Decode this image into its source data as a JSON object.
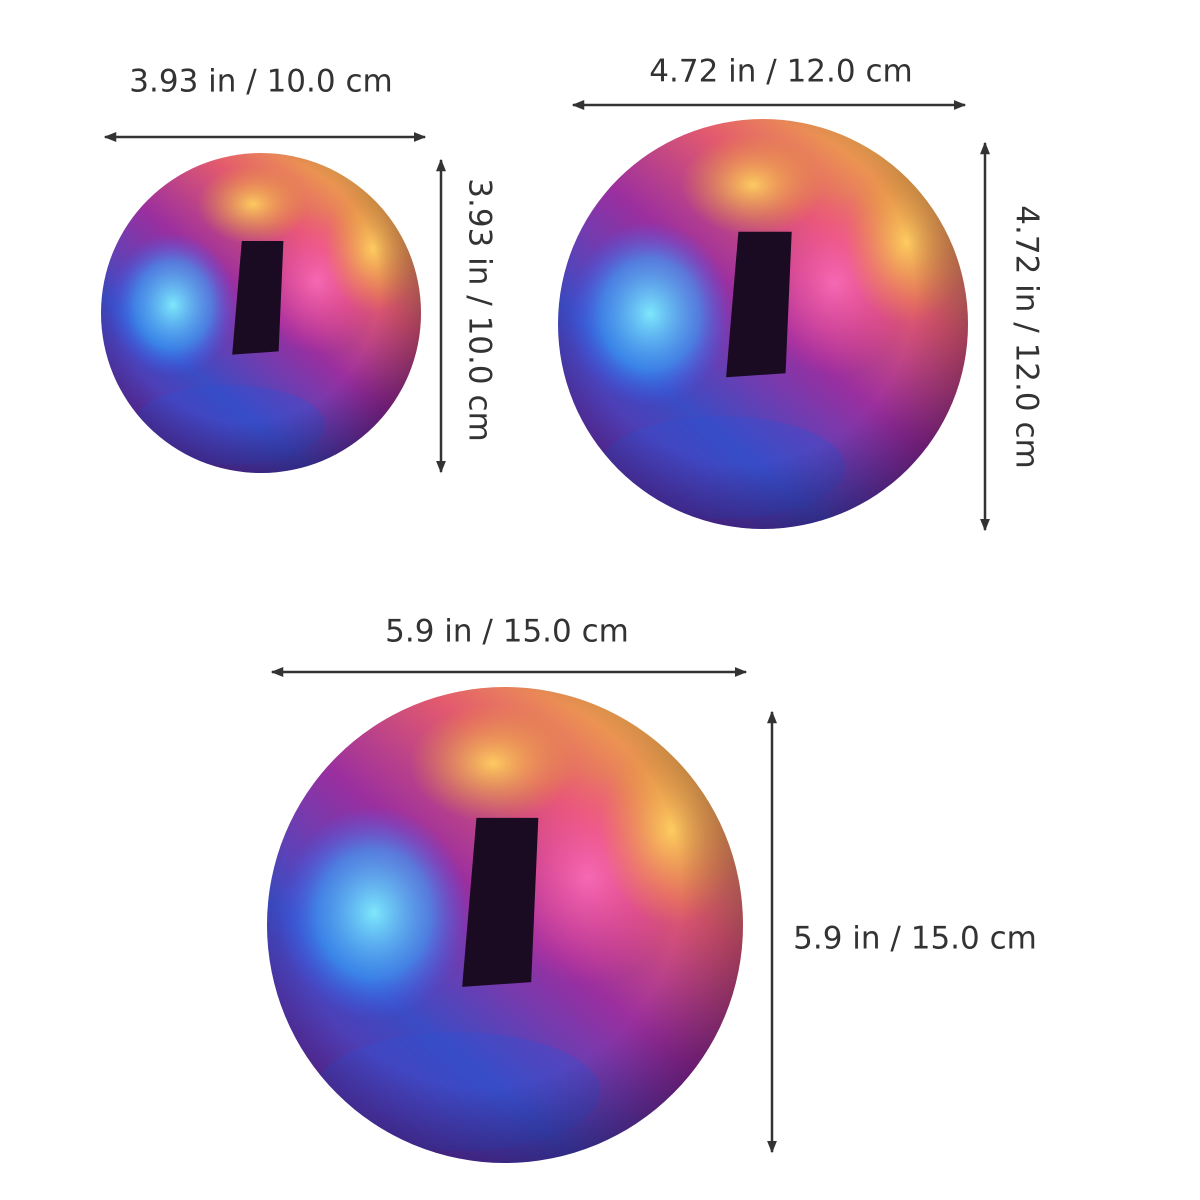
{
  "balls": [
    {
      "width_label": "3.93 in / 10.0 cm",
      "height_label": "3.93 in / 10.0 cm"
    },
    {
      "width_label": "4.72 in / 12.0 cm",
      "height_label": "4.72 in / 12.0 cm"
    },
    {
      "width_label": "5.9 in / 15.0 cm",
      "height_label": "5.9 in / 15.0 cm"
    }
  ]
}
